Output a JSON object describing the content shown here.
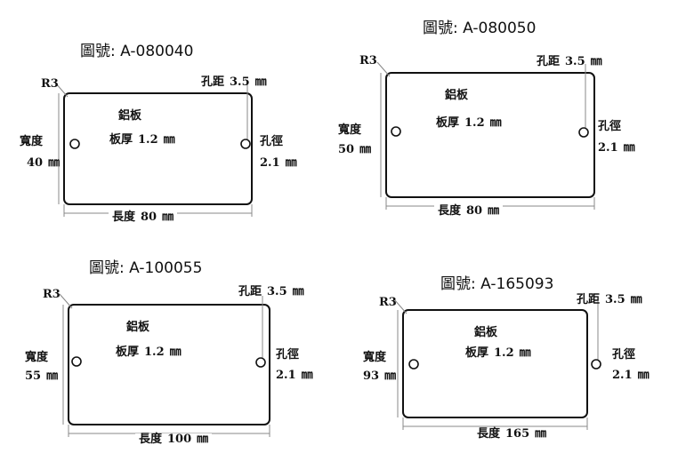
{
  "labels": {
    "material": "鋁板",
    "thickness_label": "板厚",
    "width_label": "寬度",
    "length_label": "長度",
    "hole_spacing_label": "孔距",
    "hole_diameter_label": "孔徑",
    "radius": "R3",
    "unit": "㎜"
  },
  "panels": [
    {
      "title": "圖號:  A-080040",
      "thickness": "1.2",
      "hole_spacing": "3.5",
      "hole_diameter": "2.1",
      "width": "40",
      "length": "80"
    },
    {
      "title": "圖號: A-080050",
      "thickness": "1.2",
      "hole_spacing": "3.5",
      "hole_diameter": "2.1",
      "width": "50",
      "length": "80"
    },
    {
      "title": "圖號: A-100055",
      "thickness": "1.2",
      "hole_spacing": "3.5",
      "hole_diameter": "2.1",
      "width": "55",
      "length": "100"
    },
    {
      "title": "圖號: A-165093",
      "thickness": "1.2",
      "hole_spacing": "3.5",
      "hole_diameter": "2.1",
      "width": "93",
      "length": "165"
    }
  ]
}
